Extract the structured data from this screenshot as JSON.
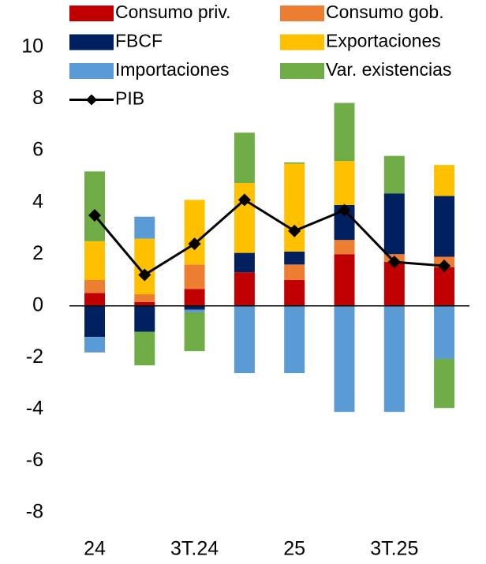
{
  "chart_data": {
    "type": "bar",
    "stacked": true,
    "categories": [
      "24",
      null,
      "3T.24",
      null,
      "25",
      null,
      "3T.25",
      null
    ],
    "series": [
      {
        "name": "Consumo priv.",
        "color": "#c00000",
        "values": [
          0.5,
          0.15,
          0.65,
          1.3,
          1.0,
          2.0,
          1.7,
          1.5
        ]
      },
      {
        "name": "Consumo gob.",
        "color": "#ed7d31",
        "values": [
          0.5,
          0.3,
          0.95,
          0,
          0.6,
          0.55,
          0.3,
          0.4
        ]
      },
      {
        "name": "FBCF",
        "color": "#002060",
        "values": [
          -1.2,
          -1.0,
          -0.15,
          0.75,
          0.5,
          1.35,
          2.35,
          2.35
        ]
      },
      {
        "name": "Exportaciones",
        "color": "#ffc000",
        "values": [
          1.5,
          2.15,
          2.5,
          2.7,
          3.4,
          1.7,
          0,
          1.2
        ]
      },
      {
        "name": "Importaciones",
        "color": "#5b9bd5",
        "values": [
          -0.6,
          0.85,
          -0.1,
          -2.6,
          -2.6,
          -4.1,
          -4.1,
          -2.05
        ]
      },
      {
        "name": "Var. existencias",
        "color": "#70ad47",
        "values": [
          2.7,
          -1.3,
          -1.5,
          1.95,
          0.05,
          2.25,
          1.45,
          -1.9
        ]
      },
      {
        "name": "PIB",
        "type": "line",
        "color": "#000000",
        "values": [
          3.5,
          1.2,
          2.4,
          4.1,
          2.9,
          3.7,
          1.7,
          1.55
        ]
      }
    ],
    "ylim": [
      -8,
      10
    ],
    "yticks": [
      -8,
      -6,
      -4,
      -2,
      0,
      2,
      4,
      6,
      8,
      10
    ],
    "legend": "top"
  }
}
